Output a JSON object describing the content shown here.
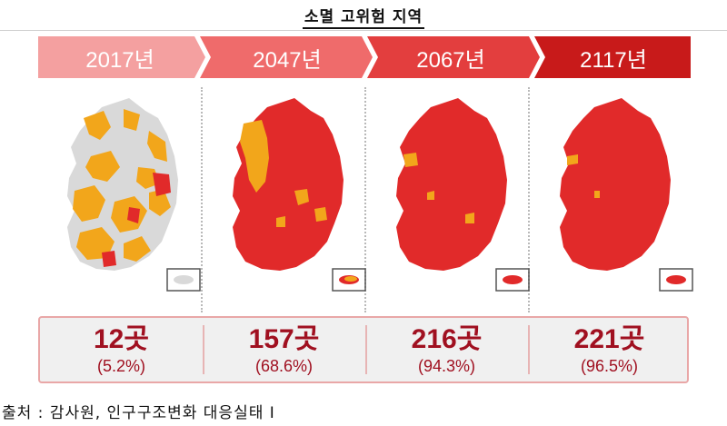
{
  "title": "소멸 고위험 지역",
  "colors": {
    "high_risk": "#e12a2a",
    "moderate_risk": "#f2a61b",
    "low_risk": "#d9d9d9",
    "number_text": "#a01020",
    "banner": [
      "#f4a0a0",
      "#ef6b6b",
      "#e33e3e",
      "#c81a1a"
    ]
  },
  "panels": [
    {
      "year": "2017년",
      "count": "12곳",
      "percent": "(5.2%)",
      "share": 0.052
    },
    {
      "year": "2047년",
      "count": "157곳",
      "percent": "(68.6%)",
      "share": 0.686
    },
    {
      "year": "2067년",
      "count": "216곳",
      "percent": "(94.3%)",
      "share": 0.943
    },
    {
      "year": "2117년",
      "count": "221곳",
      "percent": "(96.5%)",
      "share": 0.965
    }
  ],
  "source": "출처 : 감사원, 인구구조변화 대응실태 Ⅰ"
}
